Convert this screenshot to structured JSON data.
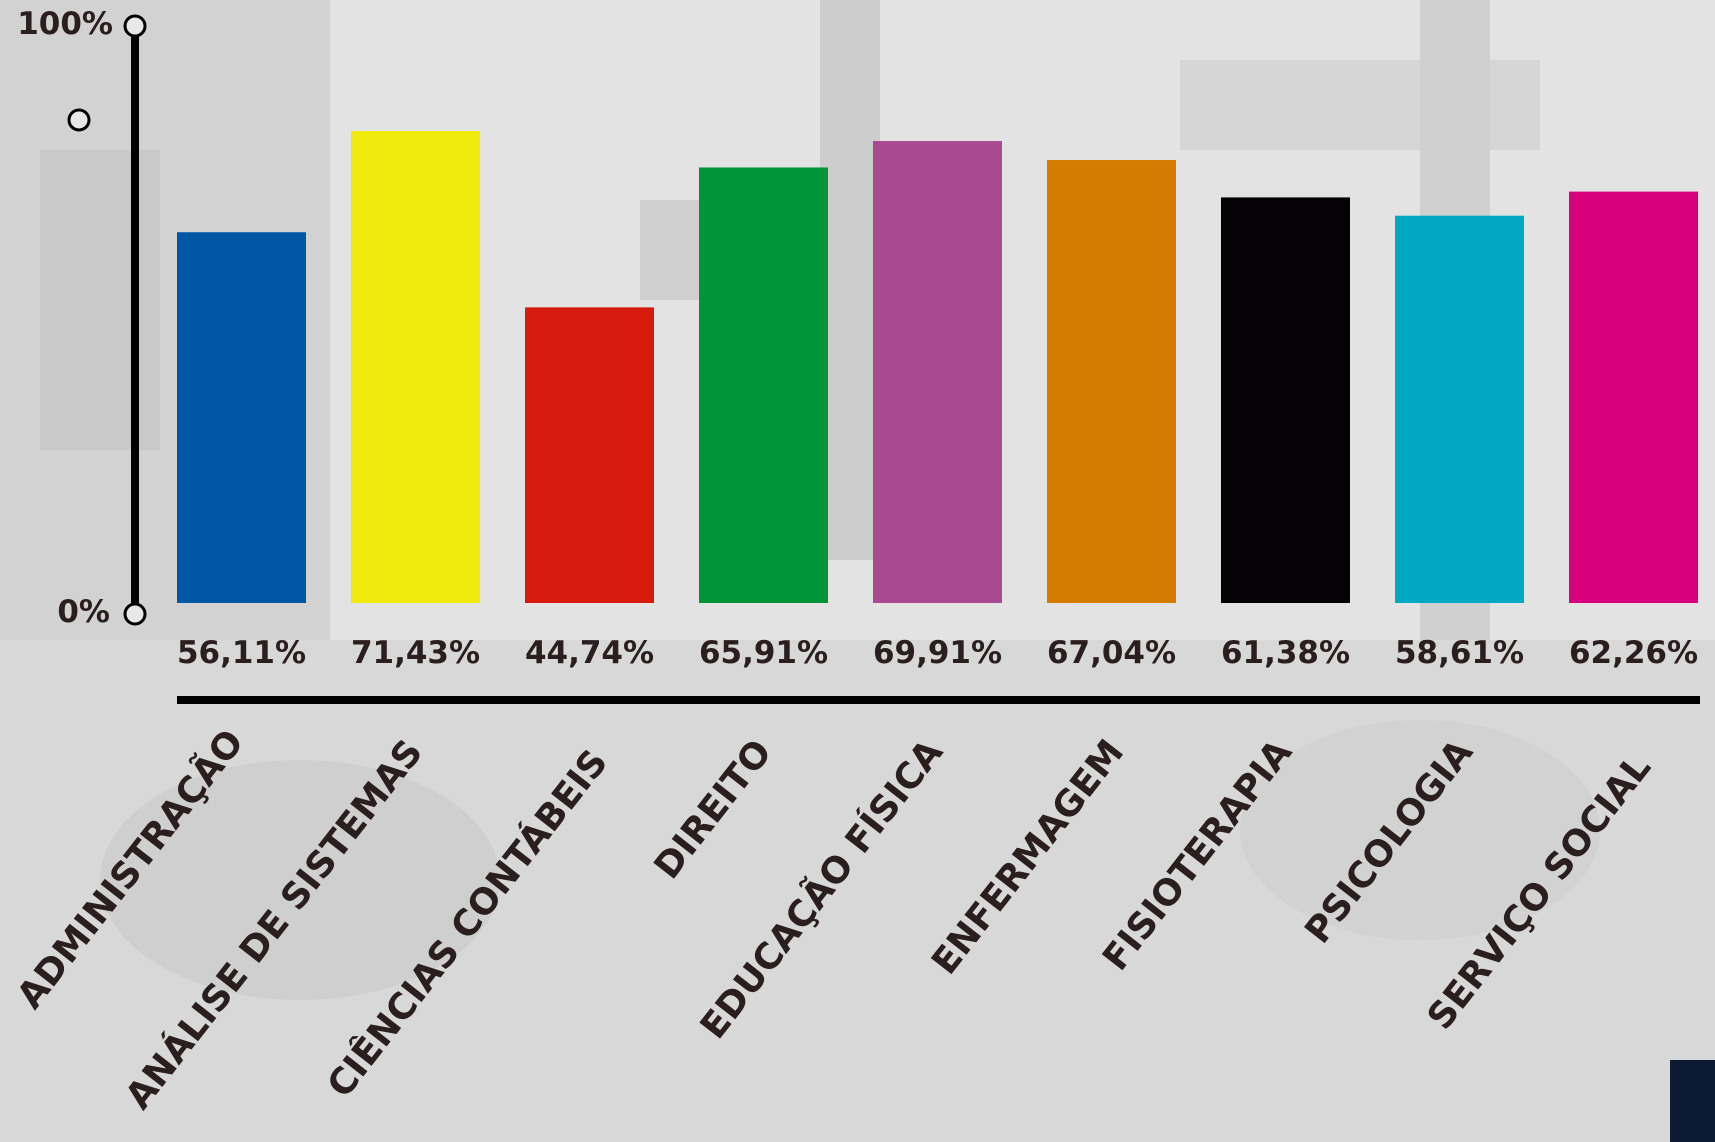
{
  "chart_data": {
    "type": "bar",
    "categories": [
      "ADMINISTRAÇÃO",
      "ANÁLISE DE SISTEMAS",
      "CIÊNCIAS CONTÁBEIS",
      "DIREITO",
      "EDUCAÇÃO FÍSICA",
      "ENFERMAGEM",
      "FISIOTERAPIA",
      "PSICOLOGIA",
      "SERVIÇO SOCIAL"
    ],
    "values": [
      56.11,
      71.43,
      44.74,
      65.91,
      69.91,
      67.04,
      61.38,
      58.61,
      62.26
    ],
    "value_labels": [
      "56,11%",
      "71,43%",
      "44,74%",
      "65,91%",
      "69,91%",
      "67,04%",
      "61,38%",
      "58,61%",
      "62,26%"
    ],
    "colors": [
      "#0058a4",
      "#f0e90c",
      "#d71a0e",
      "#009439",
      "#a9498f",
      "#d47c02",
      "#040205",
      "#00a8c4",
      "#d9007e"
    ],
    "ylim": [
      0,
      100
    ],
    "y_tick_labels": {
      "top": "100%",
      "bottom": "0%"
    },
    "title": "",
    "xlabel": "",
    "ylabel": "",
    "grid": false,
    "legend": "none"
  }
}
